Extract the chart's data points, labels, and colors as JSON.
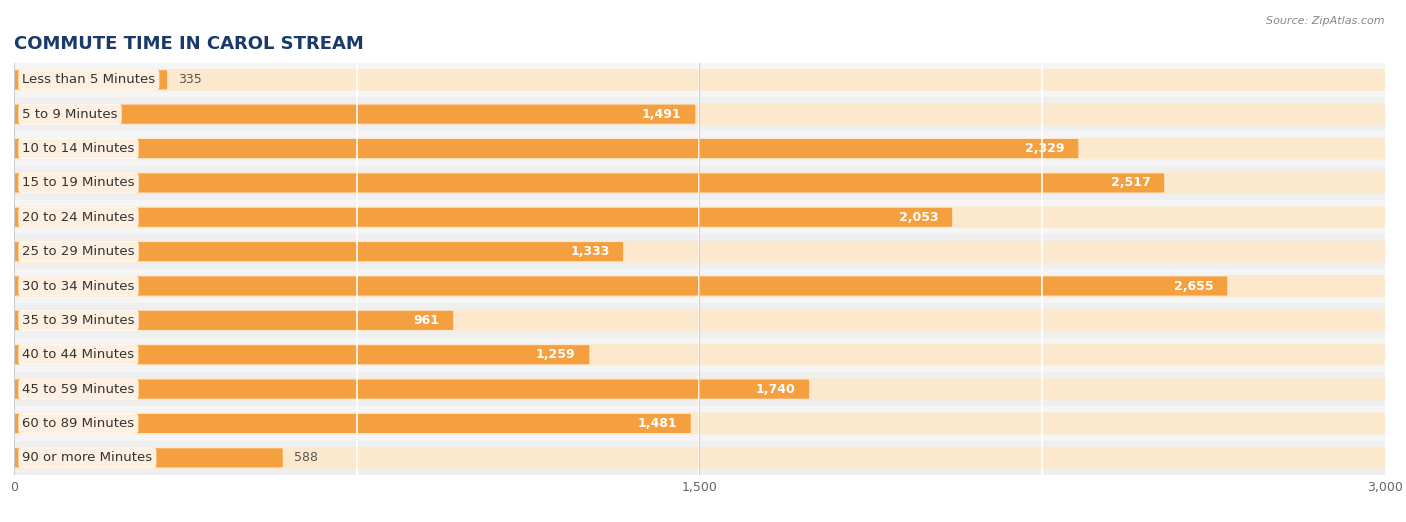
{
  "title": "COMMUTE TIME IN CAROL STREAM",
  "source": "Source: ZipAtlas.com",
  "categories": [
    "Less than 5 Minutes",
    "5 to 9 Minutes",
    "10 to 14 Minutes",
    "15 to 19 Minutes",
    "20 to 24 Minutes",
    "25 to 29 Minutes",
    "30 to 34 Minutes",
    "35 to 39 Minutes",
    "40 to 44 Minutes",
    "45 to 59 Minutes",
    "60 to 89 Minutes",
    "90 or more Minutes"
  ],
  "values": [
    335,
    1491,
    2329,
    2517,
    2053,
    1333,
    2655,
    961,
    1259,
    1740,
    1481,
    588
  ],
  "bar_color_dark": "#f5a040",
  "bar_color_light": "#fad4a0",
  "bar_bg_color": "#fce8cc",
  "xlim": [
    0,
    3000
  ],
  "xticks": [
    0,
    1500,
    3000
  ],
  "background_color": "#ffffff",
  "row_alt_color": "#f7f7f7",
  "title_fontsize": 13,
  "label_fontsize": 9.5,
  "value_fontsize": 9,
  "source_fontsize": 8
}
